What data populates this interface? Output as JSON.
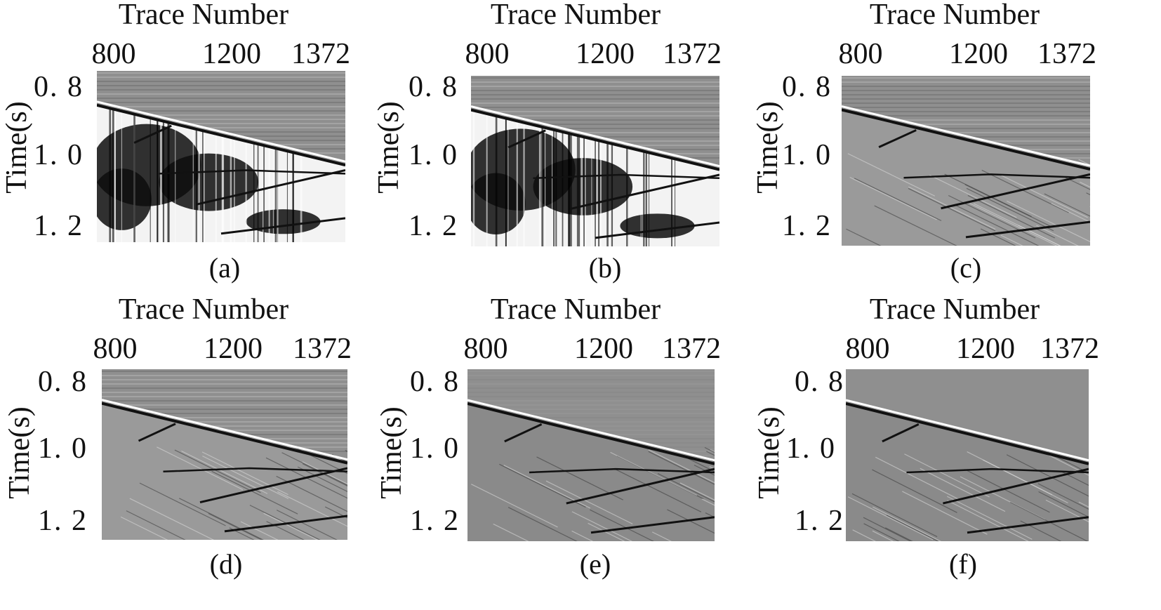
{
  "panels": [
    {
      "id": "a",
      "title": "Trace Number",
      "x_ticks": [
        "800",
        "1200",
        "1372"
      ],
      "y_ticks": [
        "0. 8",
        "1. 0",
        "1. 2"
      ],
      "y_label": "Time(s)",
      "caption": "(a)",
      "style": "raw"
    },
    {
      "id": "b",
      "title": "Trace Number",
      "x_ticks": [
        "800",
        "1200",
        "1372"
      ],
      "y_ticks": [
        "0. 8",
        "1. 0",
        "1. 2"
      ],
      "y_label": "Time(s)",
      "caption": "(b)",
      "style": "raw"
    },
    {
      "id": "c",
      "title": "Trace Number",
      "x_ticks": [
        "800",
        "1200",
        "1372"
      ],
      "y_ticks": [
        "0. 8",
        "1. 0",
        "1. 2"
      ],
      "y_label": "Time(s)",
      "caption": "(c)",
      "style": "partial"
    },
    {
      "id": "d",
      "title": "Trace Number",
      "x_ticks": [
        "800",
        "1200",
        "1372"
      ],
      "y_ticks": [
        "0. 8",
        "1. 0",
        "1. 2"
      ],
      "y_label": "Time(s)",
      "caption": "(d)",
      "style": "partial"
    },
    {
      "id": "e",
      "title": "Trace Number",
      "x_ticks": [
        "800",
        "1200",
        "1372"
      ],
      "y_ticks": [
        "0. 8",
        "1. 0",
        "1. 2"
      ],
      "y_label": "Time(s)",
      "caption": "(e)",
      "style": "clean"
    },
    {
      "id": "f",
      "title": "Trace Number",
      "x_ticks": [
        "800",
        "1200",
        "1372"
      ],
      "y_ticks": [
        "0. 8",
        "1. 0",
        "1. 2"
      ],
      "y_label": "Time(s)",
      "caption": "(f)",
      "style": "clean"
    }
  ],
  "colors": {
    "background": "#ffffff",
    "section_gray": "#8f8f8f",
    "event": "#111111"
  }
}
